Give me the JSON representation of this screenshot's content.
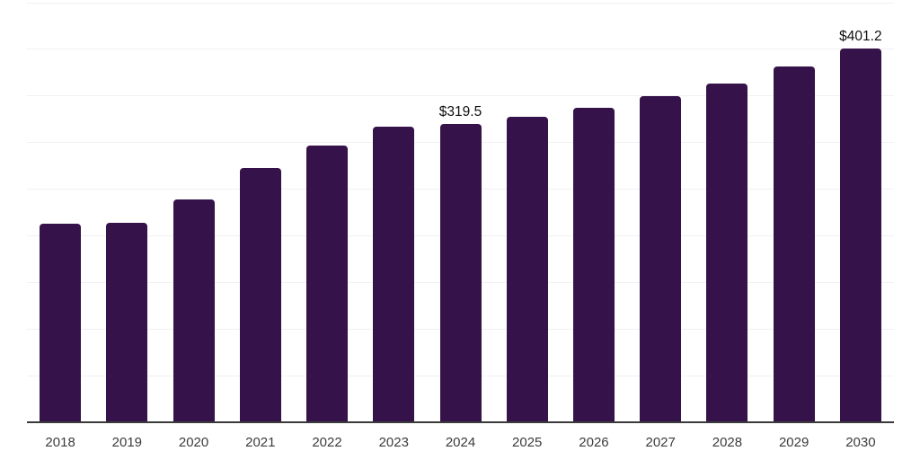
{
  "chart_data": {
    "type": "bar",
    "title": "",
    "xlabel": "",
    "ylabel": "",
    "categories": [
      "2018",
      "2019",
      "2020",
      "2021",
      "2022",
      "2023",
      "2024",
      "2025",
      "2026",
      "2027",
      "2028",
      "2029",
      "2030"
    ],
    "values": [
      213.1,
      214.0,
      238.8,
      273.0,
      296.7,
      316.7,
      319.5,
      328.1,
      337.6,
      349.9,
      363.7,
      381.3,
      401.2
    ],
    "data_labels": [
      {
        "category": "2024",
        "text": "$319.5"
      },
      {
        "category": "2030",
        "text": "$401.2"
      }
    ],
    "ylim": [
      0,
      450
    ],
    "gridline_step": 50,
    "grid": "horizontal",
    "y_tick_labels_shown": false,
    "legend": "none",
    "colors": {
      "bar": "#351249",
      "gridline": "#F1F1F4",
      "axis_line": "#3A3A3A",
      "tick_label": "#3C3C3C",
      "data_label": "#0F0F0F"
    }
  }
}
